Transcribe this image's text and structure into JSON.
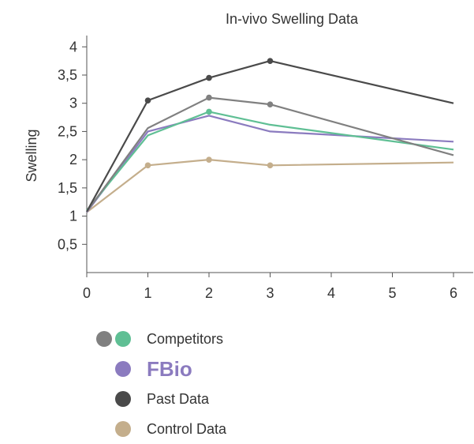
{
  "chart_data": {
    "type": "line",
    "title": "In-vivo Swelling Data",
    "xlabel": "",
    "ylabel": "Swelling",
    "xlim": [
      0,
      6
    ],
    "ylim": [
      0,
      4.2
    ],
    "x_ticks": [
      0,
      1,
      2,
      3,
      4,
      5,
      6
    ],
    "x_tick_labels": [
      "0",
      "1",
      "2",
      "3",
      "4",
      "5",
      "6"
    ],
    "y_ticks": [
      0.5,
      1,
      1.5,
      2,
      2.5,
      3,
      3.5,
      4
    ],
    "y_tick_labels": [
      "0,5",
      "1",
      "1,5",
      "2",
      "2,5",
      "3",
      "3,5",
      "4"
    ],
    "grid": false,
    "legend_position": "bottom-left",
    "series": [
      {
        "key": "control",
        "color": "#c4ae8c",
        "markers_at": [
          1,
          2,
          3
        ],
        "points": [
          [
            0,
            1.07
          ],
          [
            1,
            1.9
          ],
          [
            2,
            2.0
          ],
          [
            3,
            1.9
          ],
          [
            6,
            1.95
          ]
        ]
      },
      {
        "key": "fbio",
        "color": "#8b7bbf",
        "markers_at": [],
        "points": [
          [
            0,
            1.07
          ],
          [
            1,
            2.5
          ],
          [
            2,
            2.78
          ],
          [
            3,
            2.5
          ],
          [
            6,
            2.32
          ]
        ]
      },
      {
        "key": "competitor-green",
        "color": "#5fbf94",
        "markers_at": [
          2
        ],
        "points": [
          [
            0,
            1.1
          ],
          [
            1,
            2.43
          ],
          [
            2,
            2.85
          ],
          [
            3,
            2.62
          ],
          [
            6,
            2.18
          ]
        ]
      },
      {
        "key": "competitor-gray",
        "color": "#808080",
        "markers_at": [
          2,
          3
        ],
        "points": [
          [
            0,
            1.08
          ],
          [
            1,
            2.56
          ],
          [
            2,
            3.1
          ],
          [
            3,
            2.98
          ],
          [
            6,
            2.08
          ]
        ]
      },
      {
        "key": "past",
        "color": "#4a4a4a",
        "markers_at": [
          1,
          2,
          3
        ],
        "points": [
          [
            0,
            1.08
          ],
          [
            1,
            3.05
          ],
          [
            2,
            3.45
          ],
          [
            3,
            3.75
          ],
          [
            6,
            3.0
          ]
        ]
      }
    ]
  },
  "legend": {
    "items": [
      {
        "label": "Competitors",
        "dots": [
          "#808080",
          "#5fbf94"
        ],
        "emphasis": false
      },
      {
        "label": "FBio",
        "dots": [
          "#8b7bbf"
        ],
        "emphasis": true
      },
      {
        "label": "Past Data",
        "dots": [
          "#4a4a4a"
        ],
        "emphasis": false
      },
      {
        "label": "Control Data",
        "dots": [
          "#c4ae8c"
        ],
        "emphasis": false
      }
    ]
  }
}
